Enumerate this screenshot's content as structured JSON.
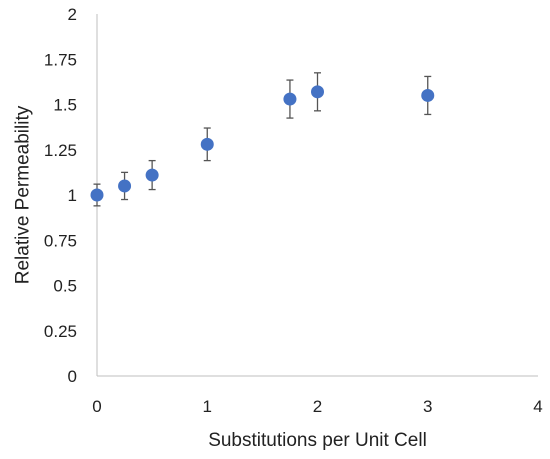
{
  "chart_data": {
    "type": "scatter",
    "xlabel": "Substitutions per Unit Cell",
    "ylabel": "Relative Permeability",
    "xlim": [
      0,
      4
    ],
    "ylim": [
      0,
      2
    ],
    "x_ticks": [
      0,
      1,
      2,
      3,
      4
    ],
    "x_tick_labels": [
      "0",
      "1",
      "2",
      "3",
      "4"
    ],
    "y_ticks": [
      0,
      0.25,
      0.5,
      0.75,
      1,
      1.25,
      1.5,
      1.75,
      2
    ],
    "y_tick_labels": [
      "0",
      "0.25",
      "0.5",
      "0.75",
      "1",
      "1.25",
      "1.5",
      "1.75",
      "2"
    ],
    "grid": false,
    "legend": "none",
    "marker_color": "#4472C4",
    "error_bar_color": "#555555",
    "points": [
      {
        "x": 0,
        "y": 1.0,
        "err": 0.06
      },
      {
        "x": 0.25,
        "y": 1.05,
        "err": 0.075
      },
      {
        "x": 0.5,
        "y": 1.11,
        "err": 0.08
      },
      {
        "x": 1.0,
        "y": 1.28,
        "err": 0.09
      },
      {
        "x": 1.75,
        "y": 1.53,
        "err": 0.105
      },
      {
        "x": 2.0,
        "y": 1.57,
        "err": 0.105
      },
      {
        "x": 3.0,
        "y": 1.55,
        "err": 0.105
      }
    ]
  }
}
